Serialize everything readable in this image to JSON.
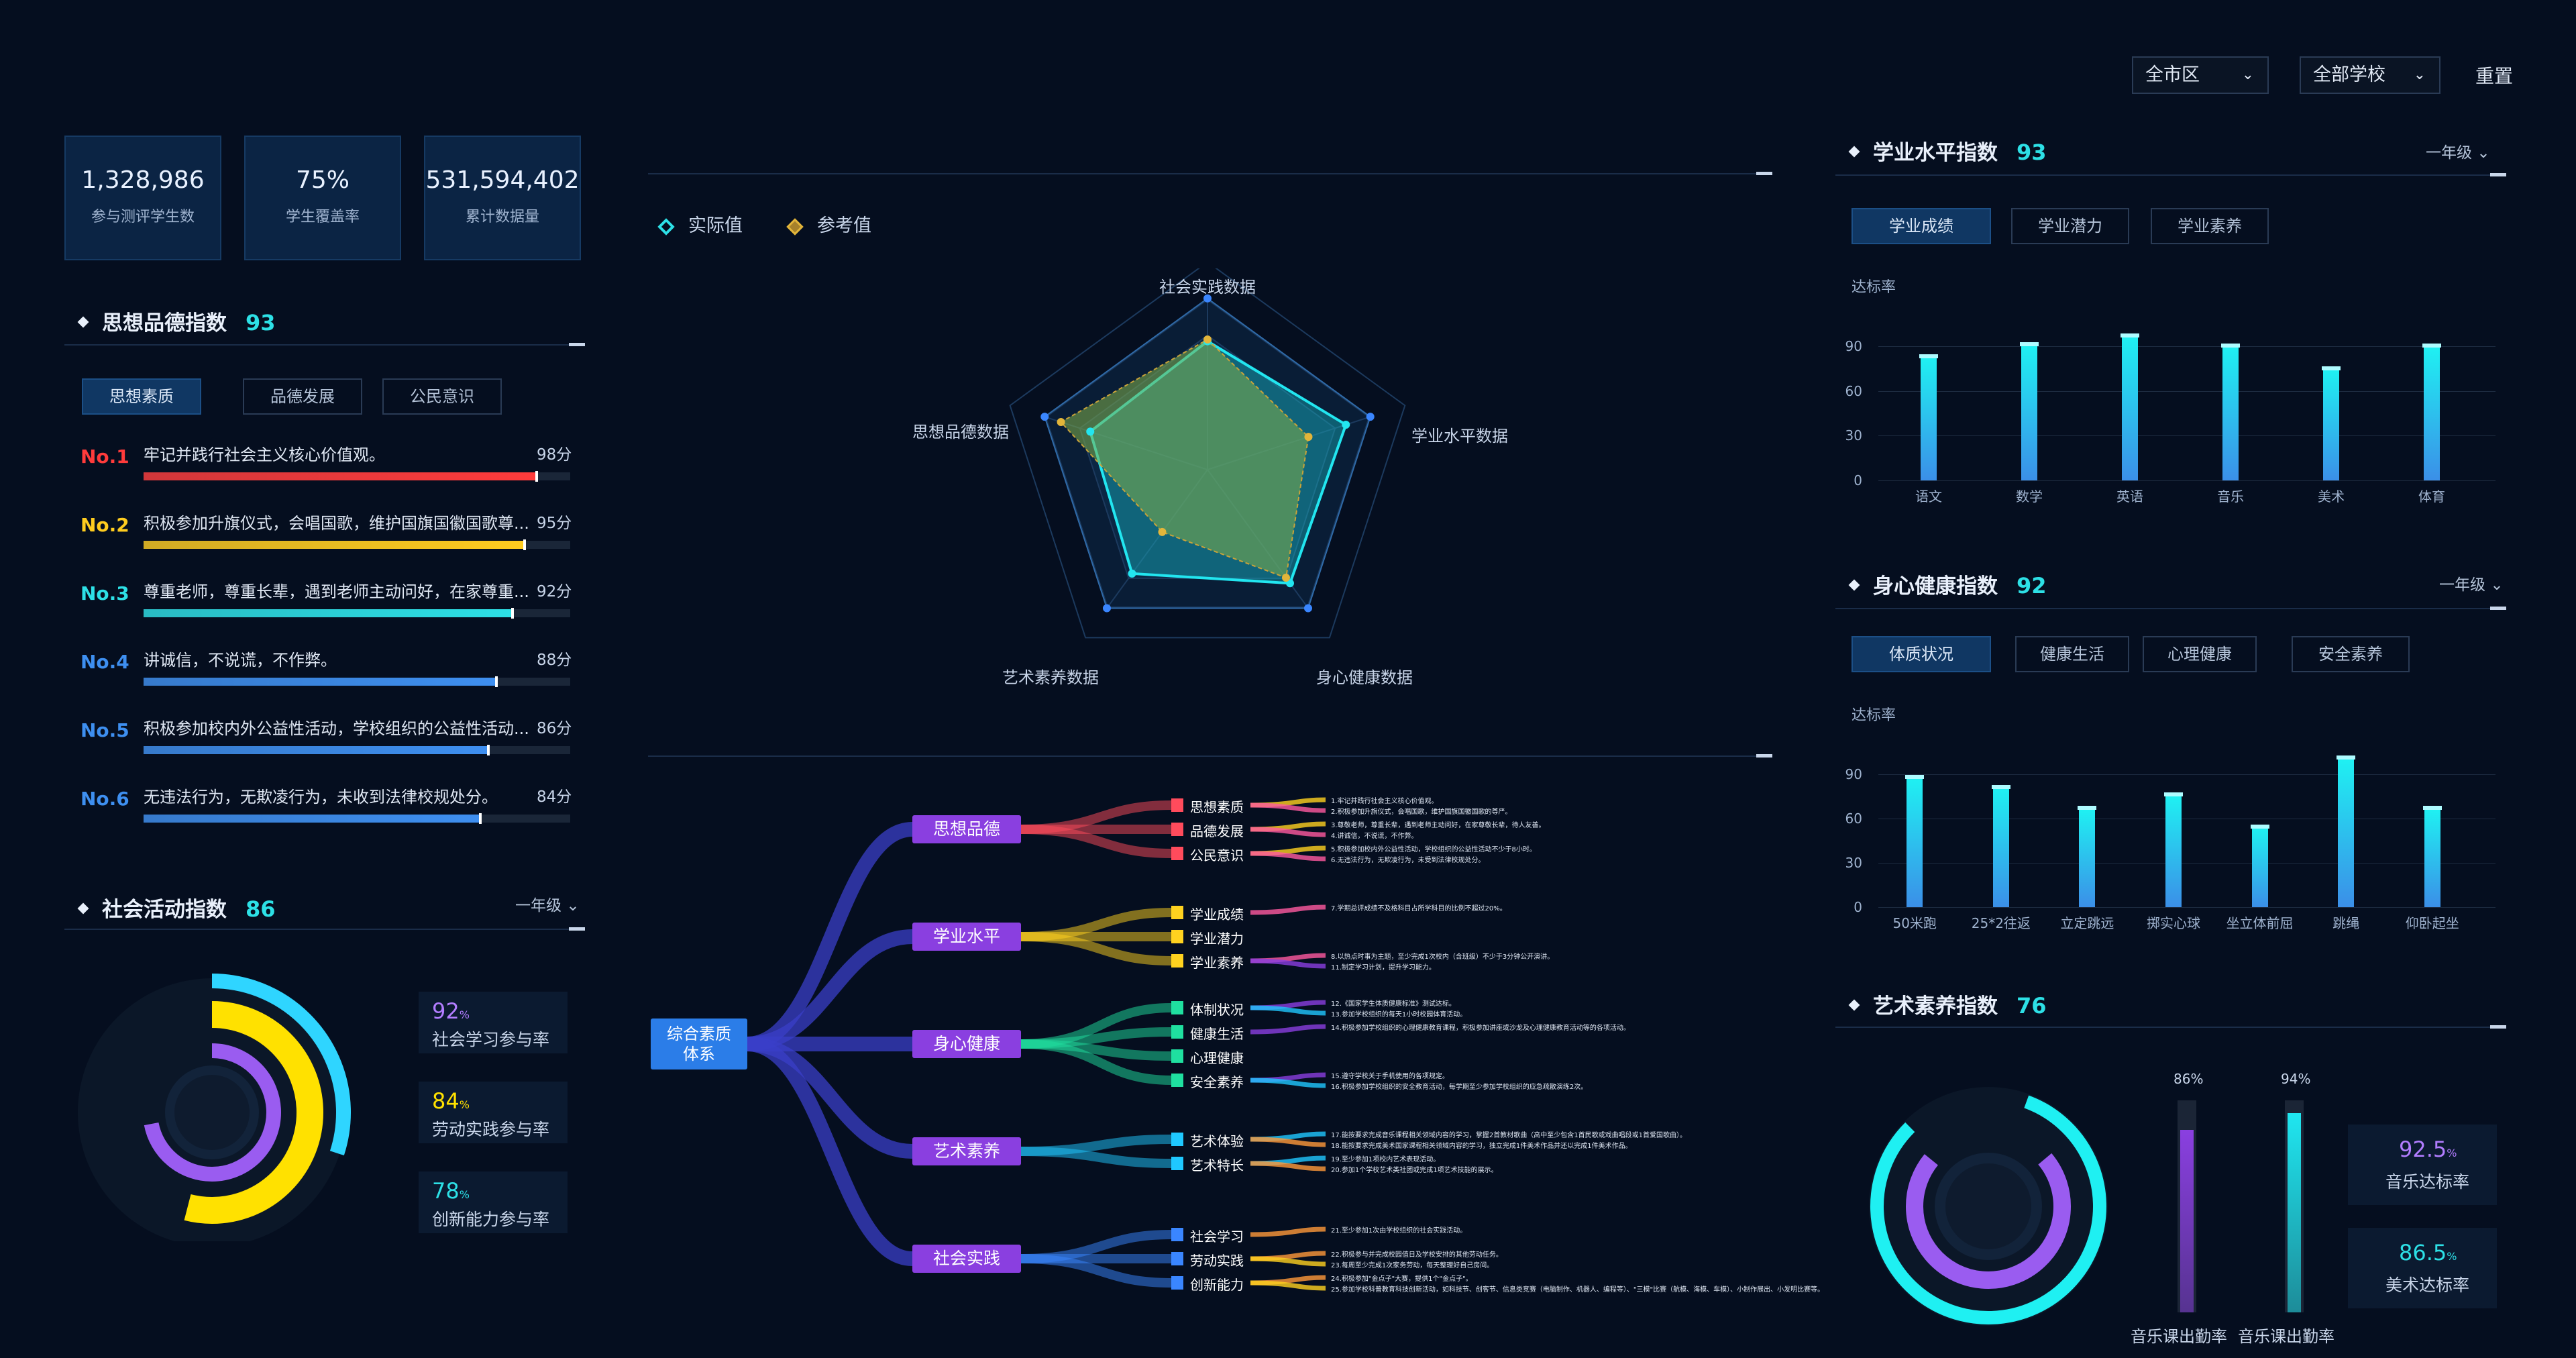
{
  "filters": {
    "district": "全市区",
    "school": "全部学校",
    "reset": "重置"
  },
  "stats": [
    {
      "value": "1,328,986",
      "label": "参与测评学生数"
    },
    {
      "value": "75%",
      "label": "学生覆盖率"
    },
    {
      "value": "531,594,402",
      "label": "累计数据量"
    }
  ],
  "moral": {
    "title": "思想品德指数",
    "score": "93",
    "tabs": [
      "思想素质",
      "品德发展",
      "公民意识"
    ],
    "ranks": [
      {
        "no": "No.1",
        "text": "牢记并践行社会主义核心价值观。",
        "score": "98分",
        "color": "#ff3b3b",
        "pct": 0.98
      },
      {
        "no": "No.2",
        "text": "积极参加升旗仪式，会唱国歌，维护国旗国徽国歌尊...",
        "score": "95分",
        "color": "#ffcc1f",
        "pct": 0.95
      },
      {
        "no": "No.3",
        "text": "尊重老师，尊重长辈，遇到老师主动问好，在家尊重...",
        "score": "92分",
        "color": "#2de0e6",
        "pct": 0.92
      },
      {
        "no": "No.4",
        "text": "讲诚信，不说谎，不作弊。",
        "score": "88分",
        "color": "#3e8ff0",
        "pct": 0.88
      },
      {
        "no": "No.5",
        "text": "积极参加校内外公益性活动，学校组织的公益性活动...",
        "score": "86分",
        "color": "#3e8ff0",
        "pct": 0.86
      },
      {
        "no": "No.6",
        "text": "无违法行为，无欺凌行为，未收到法律校规处分。",
        "score": "84分",
        "color": "#3e8ff0",
        "pct": 0.84
      }
    ]
  },
  "social": {
    "title": "社会活动指数",
    "score": "86",
    "grade": "一年级",
    "metrics": [
      {
        "pct": "92",
        "unit": "%",
        "label": "社会学习参与率",
        "color": "#b27dff"
      },
      {
        "pct": "84",
        "unit": "%",
        "label": "劳动实践参与率",
        "color": "#ffe100"
      },
      {
        "pct": "78",
        "unit": "%",
        "label": "创新能力参与率",
        "color": "#2de0e6"
      }
    ]
  },
  "radar": {
    "legend": {
      "actual": "实际值",
      "reference": "参考值"
    },
    "axes": [
      "社会实践数据",
      "学业水平数据",
      "身心健康数据",
      "艺术素养数据",
      "思想品德数据"
    ]
  },
  "tree": {
    "root": "综合素质\n体系",
    "branches": [
      {
        "label": "思想品德",
        "subs": [
          "思想素质",
          "品德发展",
          "公民意识"
        ]
      },
      {
        "label": "学业水平",
        "subs": [
          "学业成绩",
          "学业潜力",
          "学业素养"
        ]
      },
      {
        "label": "身心健康",
        "subs": [
          "体制状况",
          "健康生活",
          "心理健康",
          "安全素养"
        ]
      },
      {
        "label": "艺术素养",
        "subs": [
          "艺术体验",
          "艺术特长"
        ]
      },
      {
        "label": "社会实践",
        "subs": [
          "社会学习",
          "劳动实践",
          "创新能力"
        ]
      }
    ],
    "leaves": [
      "1.牢记并践行社会主义核心价值观。",
      "2.积极参加升旗仪式，会唱国歌，维护国旗国徽国歌的尊严。",
      "3.尊敬老师，尊重长辈，遇到老师主动问好，在家尊敬长辈，待人友善。",
      "4.讲诚信，不说谎，不作弊。",
      "5.积极参加校内外公益性活动，学校组织的公益性活动不少于8小时。",
      "6.无违法行为，无欺凌行为，未受到法律校规处分。",
      "7.学期总评成绩不及格科目占所学科目的比例不超过20%。",
      "8.以热点时事为主题，至少完成1次校内（含班级）不少于3分钟公开演讲。",
      "11.制定学习计划，提升学习能力。",
      "12.《国家学生体质健康标准》测试达标。",
      "13.参加学校组织的每天1小时校园体育活动。",
      "14.积极参加学校组织的心理健康教育课程，积极参加讲座或沙龙及心理健康教育活动等的各项活动。",
      "15.遵守学校关于手机使用的各项规定。",
      "16.积极参加学校组织的安全教育活动，每学期至少参加学校组织的应急疏散演练2次。",
      "17.能按要求完成音乐课程相关领域内容的学习，掌握2首教材歌曲（高中至少包含1首民歌或戏曲唱段或1首爱国歌曲）。",
      "18.能按要求完成美术国家课程相关领域内容的学习，独立完成1件美术作品并还以完成1件美术作品。",
      "19.至少参加1项校内艺术表现活动。",
      "20.参加1个学校艺术类社团或完成1项艺术技能的展示。",
      "21.至少参加1次由学校组织的社会实践活动。",
      "22.积极参与并完成校园值日及学校安排的其他劳动任务。",
      "23.每周至少完成1次家务劳动，每天整理好自己房间。",
      "24.积极参加\"金点子\"大赛，提供1个\"金点子\"。",
      "25.参加学校科普教育科技创新活动，如科技节、创客节、信息类竞赛（电脑制作、机器人、编程等）、\"三模\"比赛（航模、海模、车模）、小制作展出、小发明比赛等。"
    ]
  },
  "academic": {
    "title": "学业水平指数",
    "score": "93",
    "grade": "一年级",
    "tabs": [
      "学业成绩",
      "学业潜力",
      "学业素养"
    ],
    "ylabel": "达标率"
  },
  "health": {
    "title": "身心健康指数",
    "score": "92",
    "grade": "一年级",
    "tabs": [
      "体质状况",
      "健康生活",
      "心理健康",
      "安全素养"
    ],
    "ylabel": "达标率"
  },
  "art": {
    "title": "艺术素养指数",
    "score": "76",
    "metrics": [
      {
        "pct": "92.5",
        "unit": "%",
        "label": "音乐达标率",
        "color": "#b27dff"
      },
      {
        "pct": "86.5",
        "unit": "%",
        "label": "美术达标率",
        "color": "#2de0e6"
      }
    ],
    "attendance": [
      {
        "label": "音乐课出勤率",
        "value": 0.86,
        "text": "86%"
      },
      {
        "label": "音乐课出勤率",
        "value": 0.94,
        "text": "94%"
      }
    ]
  },
  "chart_data": [
    {
      "type": "bar",
      "title": "",
      "ylabel": "达标率",
      "categories": [
        "语文",
        "数学",
        "英语",
        "音乐",
        "美术",
        "体育"
      ],
      "values": [
        82,
        90,
        96,
        89,
        74,
        89
      ],
      "ylim": [
        0,
        100
      ],
      "yticks": [
        0,
        30,
        60,
        90
      ]
    },
    {
      "type": "bar",
      "title": "",
      "ylabel": "达标率",
      "categories": [
        "50米跑",
        "25*2往返",
        "立定跳远",
        "掷实心球",
        "坐立体前屈",
        "跳绳",
        "仰卧起坐"
      ],
      "values": [
        87,
        80,
        66,
        75,
        53,
        100,
        66
      ],
      "ylim": [
        0,
        100
      ],
      "yticks": [
        0,
        30,
        60,
        90
      ]
    },
    {
      "type": "radar",
      "axes": [
        "社会实践数据",
        "学业水平数据",
        "身心健康数据",
        "艺术素养数据",
        "思想品德数据"
      ],
      "series": [
        {
          "name": "实际值",
          "values": [
            0.75,
            0.85,
            0.82,
            0.75,
            0.72
          ]
        },
        {
          "name": "参考值",
          "values": [
            0.76,
            0.62,
            0.78,
            0.45,
            0.9
          ]
        }
      ],
      "outer": [
        1,
        1,
        1,
        1,
        1
      ]
    }
  ],
  "colors": {
    "accent": "#2de0e6",
    "purple": "#8a3fe0",
    "bg": "#050e1f"
  }
}
